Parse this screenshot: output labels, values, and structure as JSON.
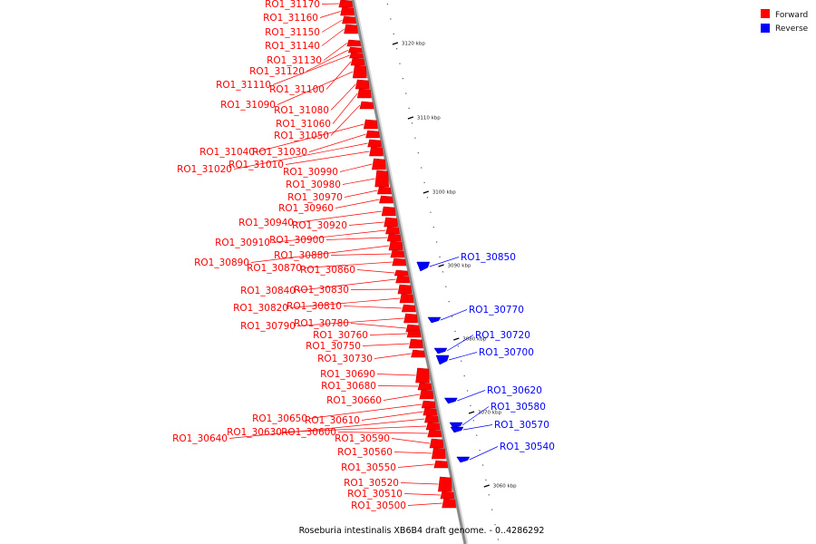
{
  "caption": "Roseburia intestinalis XB6B4 draft genome. - 0..4286292",
  "legend": [
    {
      "label": "Forward",
      "color": "#ff0000"
    },
    {
      "label": "Reverse",
      "color": "#0000ff"
    }
  ],
  "colors": {
    "forward": "#ff0000",
    "forward_dark": "#c40000",
    "reverse": "#0000ff",
    "backbone": "#8a8a8a"
  },
  "ticks": [
    {
      "label": "3120 kbp"
    },
    {
      "label": "3110 kbp"
    },
    {
      "label": "3100 kbp"
    },
    {
      "label": "3090 kbp"
    },
    {
      "label": "3080 kbp"
    },
    {
      "label": "3070 kbp"
    },
    {
      "label": "3060 kbp"
    }
  ],
  "forward_genes": [
    {
      "name": "RO1_31170"
    },
    {
      "name": "RO1_31160"
    },
    {
      "name": "RO1_31150"
    },
    {
      "name": "RO1_31140"
    },
    {
      "name": "RO1_31130"
    },
    {
      "name": "RO1_31120"
    },
    {
      "name": "RO1_31110"
    },
    {
      "name": "RO1_31100"
    },
    {
      "name": "RO1_31090"
    },
    {
      "name": "RO1_31080"
    },
    {
      "name": "RO1_31060"
    },
    {
      "name": "RO1_31050"
    },
    {
      "name": "RO1_31040"
    },
    {
      "name": "RO1_31030"
    },
    {
      "name": "RO1_31020"
    },
    {
      "name": "RO1_31010"
    },
    {
      "name": "RO1_30990"
    },
    {
      "name": "RO1_30980"
    },
    {
      "name": "RO1_30970"
    },
    {
      "name": "RO1_30960"
    },
    {
      "name": "RO1_30940"
    },
    {
      "name": "RO1_30920"
    },
    {
      "name": "RO1_30910"
    },
    {
      "name": "RO1_30900"
    },
    {
      "name": "RO1_30890"
    },
    {
      "name": "RO1_30880"
    },
    {
      "name": "RO1_30870"
    },
    {
      "name": "RO1_30860"
    },
    {
      "name": "RO1_30840"
    },
    {
      "name": "RO1_30830"
    },
    {
      "name": "RO1_30820"
    },
    {
      "name": "RO1_30810"
    },
    {
      "name": "RO1_30790"
    },
    {
      "name": "RO1_30780"
    },
    {
      "name": "RO1_30760"
    },
    {
      "name": "RO1_30750"
    },
    {
      "name": "RO1_30730"
    },
    {
      "name": "RO1_30690"
    },
    {
      "name": "RO1_30680"
    },
    {
      "name": "RO1_30660"
    },
    {
      "name": "RO1_30650"
    },
    {
      "name": "RO1_30610"
    },
    {
      "name": "RO1_30640"
    },
    {
      "name": "RO1_30630"
    },
    {
      "name": "RO1_30600"
    },
    {
      "name": "RO1_30590"
    },
    {
      "name": "RO1_30560"
    },
    {
      "name": "RO1_30550"
    },
    {
      "name": "RO1_30520"
    },
    {
      "name": "RO1_30510"
    },
    {
      "name": "RO1_30500"
    }
  ],
  "reverse_genes": [
    {
      "name": "RO1_30850"
    },
    {
      "name": "RO1_30770"
    },
    {
      "name": "RO1_30720"
    },
    {
      "name": "RO1_30700"
    },
    {
      "name": "RO1_30620"
    },
    {
      "name": "RO1_30580"
    },
    {
      "name": "RO1_30570"
    },
    {
      "name": "RO1_30540"
    }
  ]
}
